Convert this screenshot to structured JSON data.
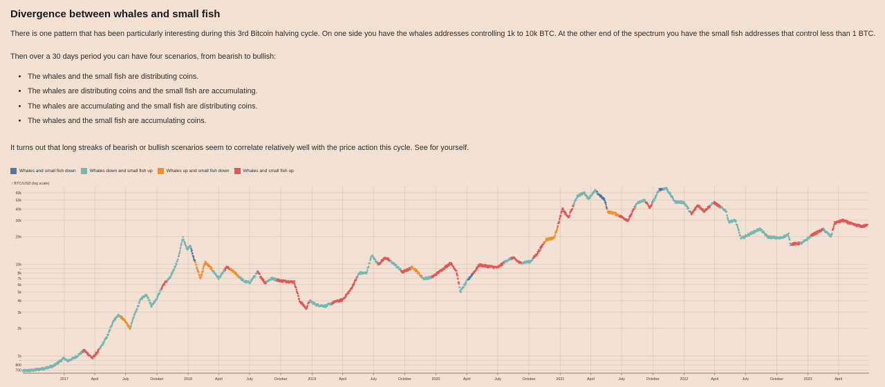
{
  "article": {
    "title": "Divergence between whales and small fish",
    "intro": "There is one pattern that has been particularly interesting during this 3rd Bitcoin halving cycle. On one side you have the whales addresses controlling 1k to 10k BTC. At the other end of the spectrum you have the small fish addresses that control less than 1 BTC.",
    "lead": "Then over a 30 days period you can have four scenarios, from bearish to bullish:",
    "scenarios": [
      "The whales and the small fish are distributing coins.",
      "The whales are distributing coins and the small fish are accumulating.",
      "The whales are accumulating and the small fish are distributing coins.",
      "The whales and the small fish are accumulating coins."
    ],
    "outro": "It turns out that long streaks of bearish or bullish scenarios seem to correlate relatively well with the price action this cycle. See for yourself."
  },
  "chart_data": {
    "type": "scatter",
    "ylabel": "↑ BTC/USD (log scale)",
    "y_scale": "log",
    "ylim": [
      650,
      70000
    ],
    "xlim": [
      "2016-09-01",
      "2023-06-30"
    ],
    "y_ticks": [
      {
        "value": 700,
        "label": "700"
      },
      {
        "value": 800,
        "label": "800"
      },
      {
        "value": 900,
        "label": "–"
      },
      {
        "value": 1000,
        "label": "1k"
      },
      {
        "value": 2000,
        "label": "2k"
      },
      {
        "value": 3000,
        "label": "3k"
      },
      {
        "value": 4000,
        "label": "4k"
      },
      {
        "value": 5000,
        "label": "5k"
      },
      {
        "value": 6000,
        "label": "6k"
      },
      {
        "value": 7000,
        "label": "7k"
      },
      {
        "value": 8000,
        "label": "8k"
      },
      {
        "value": 9000,
        "label": "–"
      },
      {
        "value": 10000,
        "label": "10k"
      },
      {
        "value": 20000,
        "label": "20k"
      },
      {
        "value": 30000,
        "label": "30k"
      },
      {
        "value": 40000,
        "label": "40k"
      },
      {
        "value": 50000,
        "label": "50k"
      },
      {
        "value": 60000,
        "label": "60k"
      }
    ],
    "x_ticks": [
      {
        "date": "2017-01-01",
        "label": "2017"
      },
      {
        "date": "2017-04-01",
        "label": "April"
      },
      {
        "date": "2017-07-01",
        "label": "July"
      },
      {
        "date": "2017-10-01",
        "label": "October"
      },
      {
        "date": "2018-01-01",
        "label": "2018"
      },
      {
        "date": "2018-04-01",
        "label": "April"
      },
      {
        "date": "2018-07-01",
        "label": "July"
      },
      {
        "date": "2018-10-01",
        "label": "October"
      },
      {
        "date": "2019-01-01",
        "label": "2019"
      },
      {
        "date": "2019-04-01",
        "label": "April"
      },
      {
        "date": "2019-07-01",
        "label": "July"
      },
      {
        "date": "2019-10-01",
        "label": "October"
      },
      {
        "date": "2020-01-01",
        "label": "2020"
      },
      {
        "date": "2020-04-01",
        "label": "April"
      },
      {
        "date": "2020-07-01",
        "label": "July"
      },
      {
        "date": "2020-10-01",
        "label": "October"
      },
      {
        "date": "2021-01-01",
        "label": "2021"
      },
      {
        "date": "2021-04-01",
        "label": "April"
      },
      {
        "date": "2021-07-01",
        "label": "July"
      },
      {
        "date": "2021-10-01",
        "label": "October"
      },
      {
        "date": "2022-01-01",
        "label": "2022"
      },
      {
        "date": "2022-04-01",
        "label": "April"
      },
      {
        "date": "2022-07-01",
        "label": "July"
      },
      {
        "date": "2022-10-01",
        "label": "October"
      },
      {
        "date": "2023-01-01",
        "label": "2023"
      },
      {
        "date": "2023-04-01",
        "label": "April"
      }
    ],
    "grid": true,
    "legend_position": "top-left",
    "categories": [
      {
        "key": "both_down",
        "name": "Whales and small fish down",
        "color": "#4e79a7"
      },
      {
        "key": "whales_down_fish_up",
        "name": "Whales down and small fish up",
        "color": "#76b7b2"
      },
      {
        "key": "whales_up_fish_down",
        "name": "Whales up and small fish down",
        "color": "#f28e2b"
      },
      {
        "key": "both_up",
        "name": "Whales and small fish up",
        "color": "#e15759"
      }
    ],
    "price_path": [
      [
        "2016-09-01",
        690
      ],
      [
        "2016-10-01",
        700
      ],
      [
        "2016-11-01",
        730
      ],
      [
        "2016-12-01",
        780
      ],
      [
        "2017-01-01",
        950
      ],
      [
        "2017-01-10",
        880
      ],
      [
        "2017-02-01",
        960
      ],
      [
        "2017-03-01",
        1150
      ],
      [
        "2017-03-25",
        950
      ],
      [
        "2017-04-15",
        1180
      ],
      [
        "2017-05-10",
        1700
      ],
      [
        "2017-05-25",
        2400
      ],
      [
        "2017-06-10",
        2800
      ],
      [
        "2017-06-25",
        2500
      ],
      [
        "2017-07-15",
        2000
      ],
      [
        "2017-07-25",
        2700
      ],
      [
        "2017-08-15",
        4200
      ],
      [
        "2017-09-01",
        4700
      ],
      [
        "2017-09-15",
        3500
      ],
      [
        "2017-10-01",
        4300
      ],
      [
        "2017-10-20",
        6000
      ],
      [
        "2017-11-10",
        7200
      ],
      [
        "2017-12-01",
        11000
      ],
      [
        "2017-12-17",
        19500
      ],
      [
        "2017-12-28",
        14500
      ],
      [
        "2018-01-07",
        16000
      ],
      [
        "2018-01-20",
        11000
      ],
      [
        "2018-02-06",
        7000
      ],
      [
        "2018-02-20",
        10500
      ],
      [
        "2018-03-10",
        9000
      ],
      [
        "2018-04-01",
        7000
      ],
      [
        "2018-04-25",
        9300
      ],
      [
        "2018-05-15",
        8300
      ],
      [
        "2018-06-15",
        6500
      ],
      [
        "2018-07-01",
        6300
      ],
      [
        "2018-07-25",
        8200
      ],
      [
        "2018-08-15",
        6300
      ],
      [
        "2018-09-05",
        7000
      ],
      [
        "2018-10-01",
        6600
      ],
      [
        "2018-11-10",
        6400
      ],
      [
        "2018-11-25",
        4000
      ],
      [
        "2018-12-15",
        3300
      ],
      [
        "2018-12-25",
        4000
      ],
      [
        "2019-01-15",
        3600
      ],
      [
        "2019-02-10",
        3500
      ],
      [
        "2019-03-10",
        3900
      ],
      [
        "2019-04-01",
        4100
      ],
      [
        "2019-04-25",
        5300
      ],
      [
        "2019-05-20",
        8000
      ],
      [
        "2019-06-10",
        8000
      ],
      [
        "2019-06-26",
        12500
      ],
      [
        "2019-07-15",
        10000
      ],
      [
        "2019-08-05",
        11800
      ],
      [
        "2019-09-01",
        10000
      ],
      [
        "2019-09-25",
        8200
      ],
      [
        "2019-10-25",
        9300
      ],
      [
        "2019-11-25",
        7000
      ],
      [
        "2019-12-20",
        7200
      ],
      [
        "2020-01-15",
        8500
      ],
      [
        "2020-02-13",
        10300
      ],
      [
        "2020-03-01",
        8500
      ],
      [
        "2020-03-13",
        5000
      ],
      [
        "2020-04-01",
        6500
      ],
      [
        "2020-05-08",
        9800
      ],
      [
        "2020-06-01",
        9500
      ],
      [
        "2020-07-01",
        9200
      ],
      [
        "2020-07-28",
        11000
      ],
      [
        "2020-08-15",
        11800
      ],
      [
        "2020-09-05",
        10300
      ],
      [
        "2020-10-05",
        10700
      ],
      [
        "2020-10-25",
        13000
      ],
      [
        "2020-11-20",
        18500
      ],
      [
        "2020-12-15",
        19500
      ],
      [
        "2021-01-08",
        40000
      ],
      [
        "2021-01-25",
        32000
      ],
      [
        "2021-02-20",
        55000
      ],
      [
        "2021-03-13",
        60000
      ],
      [
        "2021-03-25",
        52000
      ],
      [
        "2021-04-14",
        63000
      ],
      [
        "2021-05-12",
        50000
      ],
      [
        "2021-05-22",
        37000
      ],
      [
        "2021-06-10",
        36000
      ],
      [
        "2021-07-20",
        30000
      ],
      [
        "2021-08-15",
        46000
      ],
      [
        "2021-09-07",
        50000
      ],
      [
        "2021-09-22",
        41000
      ],
      [
        "2021-10-20",
        65000
      ],
      [
        "2021-11-10",
        67000
      ],
      [
        "2021-12-05",
        48000
      ],
      [
        "2022-01-01",
        47000
      ],
      [
        "2022-01-23",
        35000
      ],
      [
        "2022-02-10",
        44000
      ],
      [
        "2022-03-01",
        38000
      ],
      [
        "2022-03-30",
        47000
      ],
      [
        "2022-05-05",
        38000
      ],
      [
        "2022-05-12",
        29000
      ],
      [
        "2022-06-01",
        30000
      ],
      [
        "2022-06-18",
        19000
      ],
      [
        "2022-07-10",
        21000
      ],
      [
        "2022-08-12",
        24200
      ],
      [
        "2022-09-05",
        19800
      ],
      [
        "2022-10-10",
        19200
      ],
      [
        "2022-11-05",
        21000
      ],
      [
        "2022-11-10",
        16500
      ],
      [
        "2022-12-15",
        17000
      ],
      [
        "2023-01-15",
        21000
      ],
      [
        "2023-02-15",
        24000
      ],
      [
        "2023-03-10",
        20000
      ],
      [
        "2023-03-20",
        28000
      ],
      [
        "2023-04-14",
        30000
      ],
      [
        "2023-05-15",
        27000
      ],
      [
        "2023-06-10",
        25800
      ],
      [
        "2023-06-25",
        26500
      ]
    ],
    "regimes": [
      [
        "2016-09-01",
        "whales_down_fish_up"
      ],
      [
        "2016-12-15",
        "whales_down_fish_up"
      ],
      [
        "2017-02-25",
        "both_up"
      ],
      [
        "2017-04-15",
        "whales_down_fish_up"
      ],
      [
        "2017-06-15",
        "whales_up_fish_down"
      ],
      [
        "2017-07-15",
        "whales_down_fish_up"
      ],
      [
        "2017-10-15",
        "both_up"
      ],
      [
        "2017-11-01",
        "whales_down_fish_up"
      ],
      [
        "2018-01-10",
        "both_down"
      ],
      [
        "2018-01-22",
        "whales_up_fish_down"
      ],
      [
        "2018-03-15",
        "whales_down_fish_up"
      ],
      [
        "2018-04-20",
        "both_up"
      ],
      [
        "2018-05-05",
        "whales_up_fish_down"
      ],
      [
        "2018-06-01",
        "whales_down_fish_up"
      ],
      [
        "2018-07-25",
        "both_up"
      ],
      [
        "2018-08-20",
        "whales_down_fish_up"
      ],
      [
        "2018-09-20",
        "both_up"
      ],
      [
        "2018-12-25",
        "whales_down_fish_up"
      ],
      [
        "2019-03-01",
        "both_up"
      ],
      [
        "2019-05-15",
        "whales_down_fish_up"
      ],
      [
        "2019-07-15",
        "both_up"
      ],
      [
        "2019-08-20",
        "whales_down_fish_up"
      ],
      [
        "2019-09-20",
        "both_up"
      ],
      [
        "2019-10-20",
        "whales_up_fish_down"
      ],
      [
        "2019-11-20",
        "whales_down_fish_up"
      ],
      [
        "2019-12-20",
        "both_up"
      ],
      [
        "2020-03-10",
        "whales_down_fish_up"
      ],
      [
        "2020-04-05",
        "both_down"
      ],
      [
        "2020-04-20",
        "both_up"
      ],
      [
        "2020-07-20",
        "whales_down_fish_up"
      ],
      [
        "2020-08-10",
        "both_up"
      ],
      [
        "2020-09-10",
        "whales_down_fish_up"
      ],
      [
        "2020-10-15",
        "both_up"
      ],
      [
        "2020-11-15",
        "whales_up_fish_down"
      ],
      [
        "2020-12-25",
        "both_up"
      ],
      [
        "2021-01-25",
        "both_up"
      ],
      [
        "2021-02-10",
        "whales_down_fish_up"
      ],
      [
        "2021-04-20",
        "both_down"
      ],
      [
        "2021-05-20",
        "whales_up_fish_down"
      ],
      [
        "2021-06-25",
        "both_up"
      ],
      [
        "2021-08-10",
        "whales_down_fish_up"
      ],
      [
        "2021-09-10",
        "both_up"
      ],
      [
        "2021-10-01",
        "whales_down_fish_up"
      ],
      [
        "2021-10-20",
        "both_down"
      ],
      [
        "2021-11-01",
        "whales_down_fish_up"
      ],
      [
        "2022-01-20",
        "both_up"
      ],
      [
        "2022-03-20",
        "whales_down_fish_up"
      ],
      [
        "2022-03-30",
        "both_up"
      ],
      [
        "2022-04-20",
        "whales_down_fish_up"
      ],
      [
        "2022-11-15",
        "both_up"
      ],
      [
        "2022-12-10",
        "whales_down_fish_up"
      ],
      [
        "2023-01-10",
        "both_up"
      ],
      [
        "2023-02-15",
        "whales_down_fish_up"
      ],
      [
        "2023-03-15",
        "both_up"
      ],
      [
        "2023-06-30",
        "both_up"
      ]
    ]
  }
}
